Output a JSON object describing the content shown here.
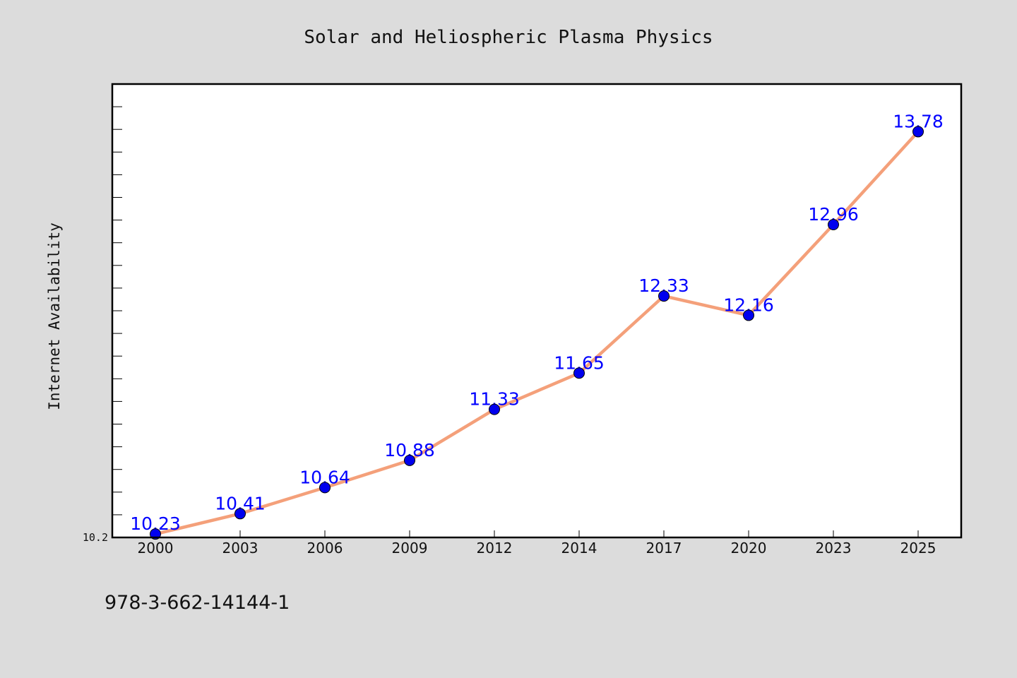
{
  "chart_data": {
    "type": "line",
    "title": "Solar and Heliospheric Plasma Physics",
    "ylabel": "Internet Availability",
    "xlabel": "",
    "categories": [
      "2000",
      "2003",
      "2006",
      "2009",
      "2012",
      "2014",
      "2017",
      "2020",
      "2023",
      "2025"
    ],
    "series": [
      {
        "values": [
          10.23,
          10.41,
          10.64,
          10.88,
          11.33,
          11.65,
          12.33,
          12.16,
          12.96,
          13.78
        ],
        "line_color": "#f4a07a",
        "marker_color": "#0000ee"
      }
    ],
    "data_labels": [
      "10.23",
      "10.41",
      "10.64",
      "10.88",
      "11.33",
      "11.65",
      "12.33",
      "12.16",
      "12.96",
      "13.78"
    ],
    "ylim": [
      10.2,
      14.2
    ],
    "y_tick_labels": [
      "10.2"
    ],
    "grid": false,
    "legend": "none"
  },
  "footer": {
    "isbn": "978-3-662-14144-1"
  },
  "colors": {
    "background": "#dcdcdc",
    "plot_background": "#ffffff",
    "axis": "#000000",
    "label": "#0000ff"
  }
}
